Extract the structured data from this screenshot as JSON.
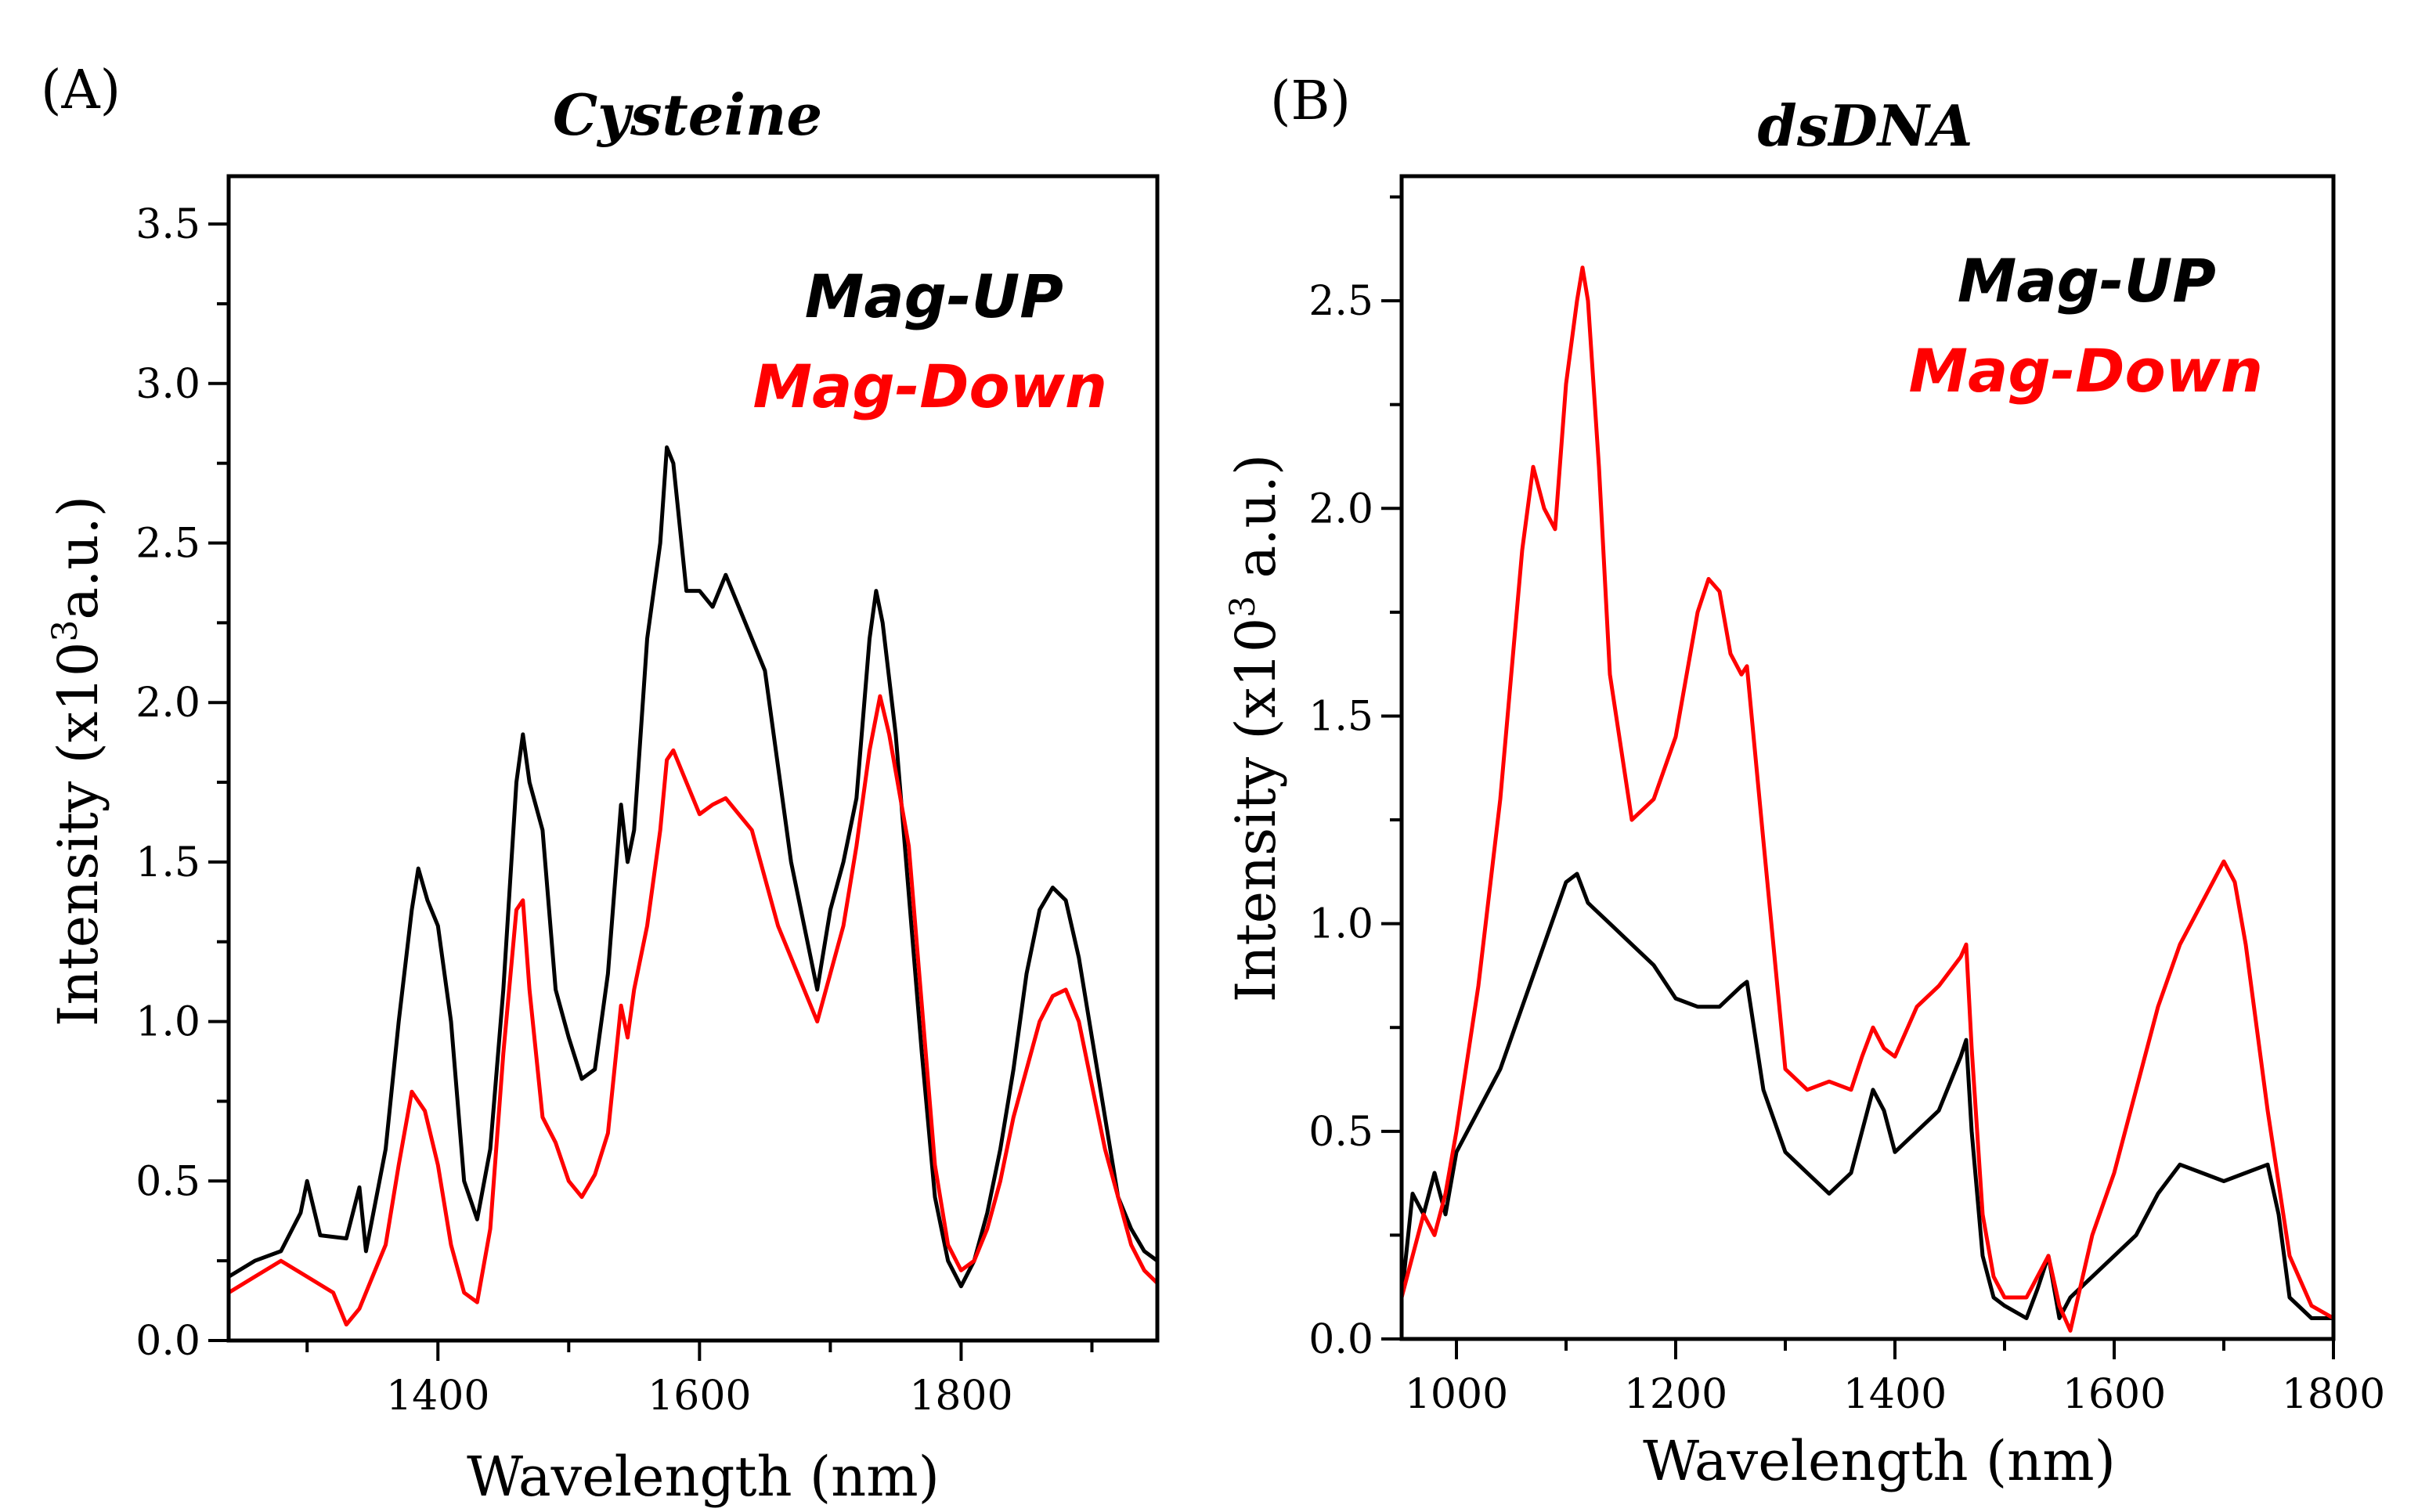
{
  "chart_data": [
    {
      "type": "line",
      "panel_label": "(A)",
      "title": "Cysteine",
      "xlabel": "Wavelength (nm)",
      "ylabel_main": "Intensity (x10",
      "ylabel_sup": "3",
      "ylabel_tail": "a.u.)",
      "xlim": [
        1240,
        1950
      ],
      "ylim": [
        0,
        3.65
      ],
      "xticks": [
        1400,
        1600,
        1800
      ],
      "xtick_labels": [
        "1400",
        "1600",
        "1800"
      ],
      "yticks": [
        0,
        0.5,
        1.0,
        1.5,
        2.0,
        2.5,
        3.0,
        3.5
      ],
      "ytick_labels": [
        "0.0",
        "0.5",
        "1.0",
        "1.5",
        "2.0",
        "2.5",
        "3.0",
        "3.5"
      ],
      "legend_position": "top-right",
      "series": [
        {
          "name": "Mag-UP",
          "color": "#000000",
          "x": [
            1240,
            1260,
            1280,
            1295,
            1300,
            1310,
            1330,
            1340,
            1345,
            1360,
            1370,
            1380,
            1385,
            1392,
            1400,
            1410,
            1420,
            1430,
            1440,
            1450,
            1460,
            1465,
            1470,
            1480,
            1490,
            1500,
            1510,
            1520,
            1530,
            1540,
            1545,
            1550,
            1560,
            1570,
            1575,
            1580,
            1590,
            1600,
            1610,
            1620,
            1630,
            1640,
            1650,
            1660,
            1670,
            1680,
            1690,
            1700,
            1710,
            1720,
            1730,
            1735,
            1740,
            1750,
            1760,
            1770,
            1780,
            1790,
            1800,
            1810,
            1820,
            1830,
            1840,
            1850,
            1860,
            1870,
            1880,
            1890,
            1900,
            1910,
            1920,
            1930,
            1940,
            1950
          ],
          "y": [
            0.2,
            0.25,
            0.28,
            0.4,
            0.5,
            0.33,
            0.32,
            0.48,
            0.28,
            0.6,
            1.0,
            1.35,
            1.48,
            1.38,
            1.3,
            1.0,
            0.5,
            0.38,
            0.6,
            1.1,
            1.75,
            1.9,
            1.75,
            1.6,
            1.1,
            0.95,
            0.82,
            0.85,
            1.15,
            1.68,
            1.5,
            1.6,
            2.2,
            2.5,
            2.8,
            2.75,
            2.35,
            2.35,
            2.3,
            2.4,
            2.3,
            2.2,
            2.1,
            1.8,
            1.5,
            1.3,
            1.1,
            1.35,
            1.5,
            1.7,
            2.2,
            2.35,
            2.25,
            1.9,
            1.4,
            0.9,
            0.45,
            0.25,
            0.17,
            0.25,
            0.4,
            0.6,
            0.85,
            1.15,
            1.35,
            1.42,
            1.38,
            1.2,
            0.95,
            0.7,
            0.45,
            0.35,
            0.28,
            0.25
          ]
        },
        {
          "name": "Mag-Down",
          "color": "#ff0000",
          "x": [
            1240,
            1260,
            1280,
            1300,
            1320,
            1330,
            1340,
            1350,
            1360,
            1370,
            1380,
            1390,
            1400,
            1410,
            1420,
            1430,
            1440,
            1450,
            1460,
            1465,
            1470,
            1480,
            1490,
            1500,
            1510,
            1520,
            1530,
            1540,
            1545,
            1550,
            1560,
            1570,
            1575,
            1580,
            1590,
            1600,
            1610,
            1620,
            1630,
            1640,
            1650,
            1660,
            1670,
            1680,
            1690,
            1700,
            1710,
            1720,
            1730,
            1738,
            1745,
            1760,
            1770,
            1780,
            1790,
            1800,
            1810,
            1820,
            1830,
            1840,
            1850,
            1860,
            1870,
            1880,
            1890,
            1900,
            1910,
            1920,
            1930,
            1940,
            1950
          ],
          "y": [
            0.15,
            0.2,
            0.25,
            0.2,
            0.15,
            0.05,
            0.1,
            0.2,
            0.3,
            0.55,
            0.78,
            0.72,
            0.55,
            0.3,
            0.15,
            0.12,
            0.35,
            0.9,
            1.35,
            1.38,
            1.1,
            0.7,
            0.62,
            0.5,
            0.45,
            0.52,
            0.65,
            1.05,
            0.95,
            1.1,
            1.3,
            1.6,
            1.82,
            1.85,
            1.75,
            1.65,
            1.68,
            1.7,
            1.65,
            1.6,
            1.45,
            1.3,
            1.2,
            1.1,
            1.0,
            1.15,
            1.3,
            1.55,
            1.85,
            2.02,
            1.9,
            1.55,
            1.05,
            0.55,
            0.3,
            0.22,
            0.25,
            0.35,
            0.5,
            0.7,
            0.85,
            1.0,
            1.08,
            1.1,
            1.0,
            0.8,
            0.6,
            0.45,
            0.3,
            0.22,
            0.18
          ]
        }
      ]
    },
    {
      "type": "line",
      "panel_label": "(B)",
      "title": "dsDNA",
      "xlabel": "Wavelength (nm)",
      "ylabel_main": "Intensity (x10",
      "ylabel_sup": "3",
      "ylabel_tail": " a.u.)",
      "xlim": [
        950,
        1800
      ],
      "ylim": [
        0,
        2.8
      ],
      "xticks": [
        1000,
        1200,
        1400,
        1600,
        1800
      ],
      "xtick_labels": [
        "1000",
        "1200",
        "1400",
        "1600",
        "1800"
      ],
      "yticks": [
        0,
        0.5,
        1.0,
        1.5,
        2.0,
        2.5
      ],
      "ytick_labels": [
        "0.0",
        "0.5",
        "1.0",
        "1.5",
        "2.0",
        "2.5"
      ],
      "legend_position": "top-right",
      "series": [
        {
          "name": "Mag-UP",
          "color": "#000000",
          "x": [
            950,
            960,
            970,
            980,
            990,
            1000,
            1020,
            1040,
            1060,
            1080,
            1100,
            1110,
            1120,
            1140,
            1160,
            1180,
            1200,
            1220,
            1240,
            1260,
            1265,
            1280,
            1300,
            1320,
            1340,
            1360,
            1370,
            1380,
            1390,
            1400,
            1420,
            1440,
            1460,
            1465,
            1470,
            1480,
            1490,
            1500,
            1520,
            1530,
            1540,
            1550,
            1560,
            1580,
            1600,
            1620,
            1640,
            1660,
            1680,
            1700,
            1720,
            1740,
            1750,
            1760,
            1780,
            1800
          ],
          "y": [
            0.1,
            0.35,
            0.3,
            0.4,
            0.3,
            0.45,
            0.55,
            0.65,
            0.8,
            0.95,
            1.1,
            1.12,
            1.05,
            1.0,
            0.95,
            0.9,
            0.82,
            0.8,
            0.8,
            0.85,
            0.86,
            0.6,
            0.45,
            0.4,
            0.35,
            0.4,
            0.5,
            0.6,
            0.55,
            0.45,
            0.5,
            0.55,
            0.68,
            0.72,
            0.5,
            0.2,
            0.1,
            0.08,
            0.05,
            0.12,
            0.2,
            0.05,
            0.1,
            0.15,
            0.2,
            0.25,
            0.35,
            0.42,
            0.4,
            0.38,
            0.4,
            0.42,
            0.3,
            0.1,
            0.05,
            0.05
          ]
        },
        {
          "name": "Mag-Down",
          "color": "#ff0000",
          "x": [
            950,
            960,
            970,
            980,
            990,
            1000,
            1020,
            1040,
            1060,
            1070,
            1080,
            1090,
            1100,
            1110,
            1115,
            1120,
            1130,
            1140,
            1160,
            1180,
            1200,
            1220,
            1230,
            1240,
            1250,
            1260,
            1265,
            1280,
            1300,
            1320,
            1340,
            1360,
            1370,
            1380,
            1390,
            1400,
            1420,
            1440,
            1460,
            1465,
            1470,
            1480,
            1490,
            1500,
            1520,
            1540,
            1550,
            1560,
            1580,
            1600,
            1620,
            1640,
            1660,
            1680,
            1690,
            1700,
            1710,
            1720,
            1740,
            1760,
            1780,
            1800
          ],
          "y": [
            0.1,
            0.2,
            0.3,
            0.25,
            0.35,
            0.5,
            0.85,
            1.3,
            1.9,
            2.1,
            2.0,
            1.95,
            2.3,
            2.5,
            2.58,
            2.5,
            2.1,
            1.6,
            1.25,
            1.3,
            1.45,
            1.75,
            1.83,
            1.8,
            1.65,
            1.6,
            1.62,
            1.2,
            0.65,
            0.6,
            0.62,
            0.6,
            0.68,
            0.75,
            0.7,
            0.68,
            0.8,
            0.85,
            0.92,
            0.95,
            0.7,
            0.3,
            0.15,
            0.1,
            0.1,
            0.2,
            0.08,
            0.02,
            0.25,
            0.4,
            0.6,
            0.8,
            0.95,
            1.05,
            1.1,
            1.15,
            1.1,
            0.95,
            0.55,
            0.2,
            0.08,
            0.05
          ]
        }
      ]
    }
  ]
}
